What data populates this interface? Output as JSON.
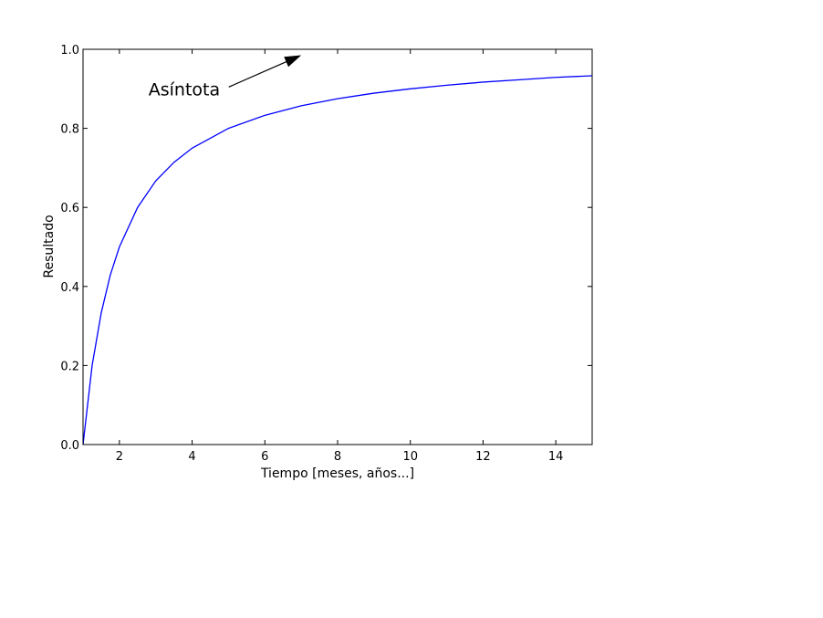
{
  "chart_data": {
    "type": "line",
    "title": "",
    "xlabel": "Tiempo [meses, años...]",
    "ylabel": "Resultado",
    "xlim": [
      1,
      15
    ],
    "ylim": [
      0.0,
      1.0
    ],
    "xticks": [
      2,
      4,
      6,
      8,
      10,
      12,
      14
    ],
    "xtick_labels": [
      "2",
      "4",
      "6",
      "8",
      "10",
      "12",
      "14"
    ],
    "yticks": [
      0.0,
      0.2,
      0.4,
      0.6,
      0.8,
      1.0
    ],
    "ytick_labels": [
      "0.0",
      "0.2",
      "0.4",
      "0.6",
      "0.8",
      "1.0"
    ],
    "grid": false,
    "series": [
      {
        "color": "#0000ff",
        "x": [
          1,
          1.25,
          1.5,
          1.75,
          2,
          2.5,
          3,
          3.5,
          4,
          5,
          6,
          7,
          8,
          9,
          10,
          11,
          12,
          13,
          14,
          15
        ],
        "y": [
          0.0,
          0.2,
          0.333,
          0.429,
          0.5,
          0.6,
          0.667,
          0.714,
          0.75,
          0.8,
          0.833,
          0.857,
          0.875,
          0.889,
          0.9,
          0.909,
          0.917,
          0.923,
          0.929,
          0.933
        ]
      }
    ],
    "annotations": [
      {
        "text": "Asíntota",
        "text_x": 2.8,
        "text_y": 0.9,
        "arrow_to_x": 7.0,
        "arrow_to_y": 0.985
      }
    ]
  }
}
